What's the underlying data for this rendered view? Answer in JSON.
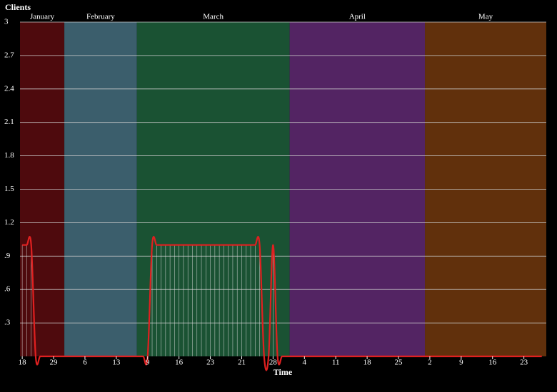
{
  "chart_data": {
    "type": "line",
    "y_label": "Clients",
    "x_label": "Time",
    "bands": [
      {
        "name": "January",
        "start": -0.5,
        "end": 9.4,
        "color": "#4e0a0d"
      },
      {
        "name": "February",
        "start": 9.4,
        "end": 25.6,
        "color": "#3b5e6c"
      },
      {
        "name": "March",
        "start": 25.6,
        "end": 59.7,
        "color": "#1a5233"
      },
      {
        "name": "April",
        "start": 59.7,
        "end": 89.9,
        "color": "#532463"
      },
      {
        "name": "May",
        "start": 89.9,
        "end": 117,
        "color": "#61300c"
      }
    ],
    "x": [
      0,
      1,
      2,
      3,
      4,
      5,
      6,
      7,
      8,
      9,
      10,
      11,
      12,
      13,
      14,
      15,
      16,
      17,
      18,
      19,
      20,
      21,
      22,
      23,
      24,
      25,
      26,
      27,
      28,
      29,
      30,
      31,
      32,
      33,
      34,
      35,
      36,
      37,
      38,
      39,
      40,
      41,
      42,
      43,
      44,
      45,
      46,
      47,
      48,
      49,
      50,
      51,
      52,
      53,
      54,
      55,
      56,
      57,
      58,
      59,
      60,
      61,
      62,
      63,
      64,
      65,
      66,
      67,
      68,
      69,
      70,
      71,
      72,
      73,
      74,
      75,
      76,
      77,
      78,
      79,
      80,
      81,
      82,
      83,
      84,
      85,
      86,
      87,
      88,
      89,
      90,
      91,
      92,
      93,
      94,
      95,
      96,
      97,
      98,
      99,
      100,
      101,
      102,
      103,
      104,
      105,
      106,
      107,
      108,
      109,
      110,
      111,
      112,
      113,
      114,
      115,
      116
    ],
    "series": [
      {
        "color": "#e02020",
        "values": [
          1,
          1,
          1,
          0,
          0,
          0,
          0,
          0,
          0,
          0,
          0,
          0,
          0,
          0,
          0,
          0,
          0,
          0,
          0,
          0,
          0,
          0,
          0,
          0,
          0,
          0,
          0,
          0,
          0,
          1,
          1,
          1,
          1,
          1,
          1,
          1,
          1,
          1,
          1,
          1,
          1,
          1,
          1,
          1,
          1,
          1,
          1,
          1,
          1,
          1,
          1,
          1,
          1,
          1,
          0,
          0,
          1,
          0,
          0,
          0,
          0,
          0,
          0,
          0,
          0,
          0,
          0,
          0,
          0,
          0,
          0,
          0,
          0,
          0,
          0,
          0,
          0,
          0,
          0,
          0,
          0,
          0,
          0,
          0,
          0,
          0,
          0,
          0,
          0,
          0,
          0,
          0,
          0,
          0,
          0,
          0,
          0,
          0,
          0,
          0,
          0,
          0,
          0,
          0,
          0,
          0,
          0,
          0,
          0,
          0,
          0,
          0,
          0,
          0,
          0,
          0,
          0
        ]
      }
    ],
    "xlim": [
      -0.5,
      117
    ],
    "ylim": [
      0,
      3
    ],
    "xticks": [
      {
        "value": 0,
        "label": "18"
      },
      {
        "value": 7,
        "label": "29"
      },
      {
        "value": 14,
        "label": "6"
      },
      {
        "value": 21,
        "label": "13"
      },
      {
        "value": 28,
        "label": "9"
      },
      {
        "value": 35,
        "label": "16"
      },
      {
        "value": 42,
        "label": "23"
      },
      {
        "value": 49,
        "label": "21"
      },
      {
        "value": 56,
        "label": "28"
      },
      {
        "value": 63,
        "label": "4"
      },
      {
        "value": 70,
        "label": "11"
      },
      {
        "value": 77,
        "label": "18"
      },
      {
        "value": 84,
        "label": "25"
      },
      {
        "value": 91,
        "label": "2"
      },
      {
        "value": 98,
        "label": "9"
      },
      {
        "value": 105,
        "label": "16"
      },
      {
        "value": 112,
        "label": "23"
      }
    ],
    "yticks": [
      {
        "value": 0.3,
        "label": ".3"
      },
      {
        "value": 0.6,
        "label": ".6"
      },
      {
        "value": 0.9,
        "label": ".9"
      },
      1.2,
      1.5,
      1.8,
      2.1,
      2.4,
      2.7,
      3
    ],
    "grid": true
  }
}
